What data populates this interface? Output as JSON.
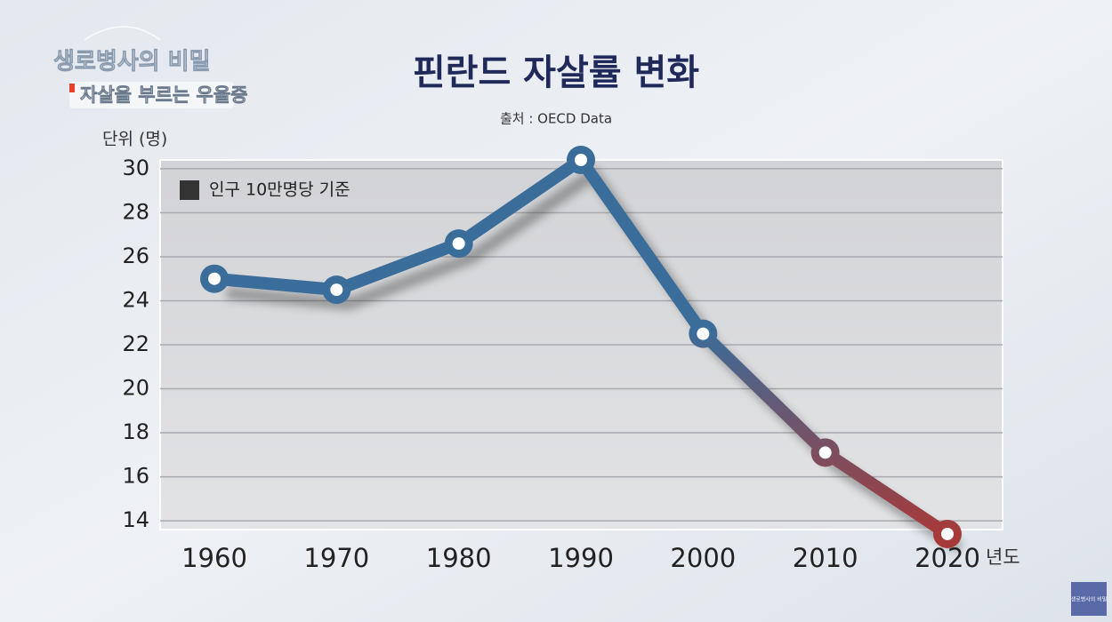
{
  "program": {
    "name": "생로병사의 비밀",
    "episode": "자살을 부르는 우울증"
  },
  "chart_data": {
    "type": "line",
    "title": "핀란드 자살률 변화",
    "subtitle": "출처 : OECD Data",
    "y_label": "단위 (명)",
    "x_label": "년도",
    "legend": "인구 10만명당 기준",
    "categories": [
      "1960",
      "1970",
      "1980",
      "1990",
      "2000",
      "2010",
      "2020"
    ],
    "values": [
      25.0,
      24.5,
      26.6,
      30.4,
      22.5,
      17.1,
      13.4
    ],
    "color": [
      "#3a6d9a",
      "#a63a3a"
    ],
    "ylim": [
      13.6,
      30.4
    ],
    "yticks": [
      14,
      16,
      18,
      20,
      22,
      24,
      26,
      28,
      30
    ],
    "grid": true
  }
}
